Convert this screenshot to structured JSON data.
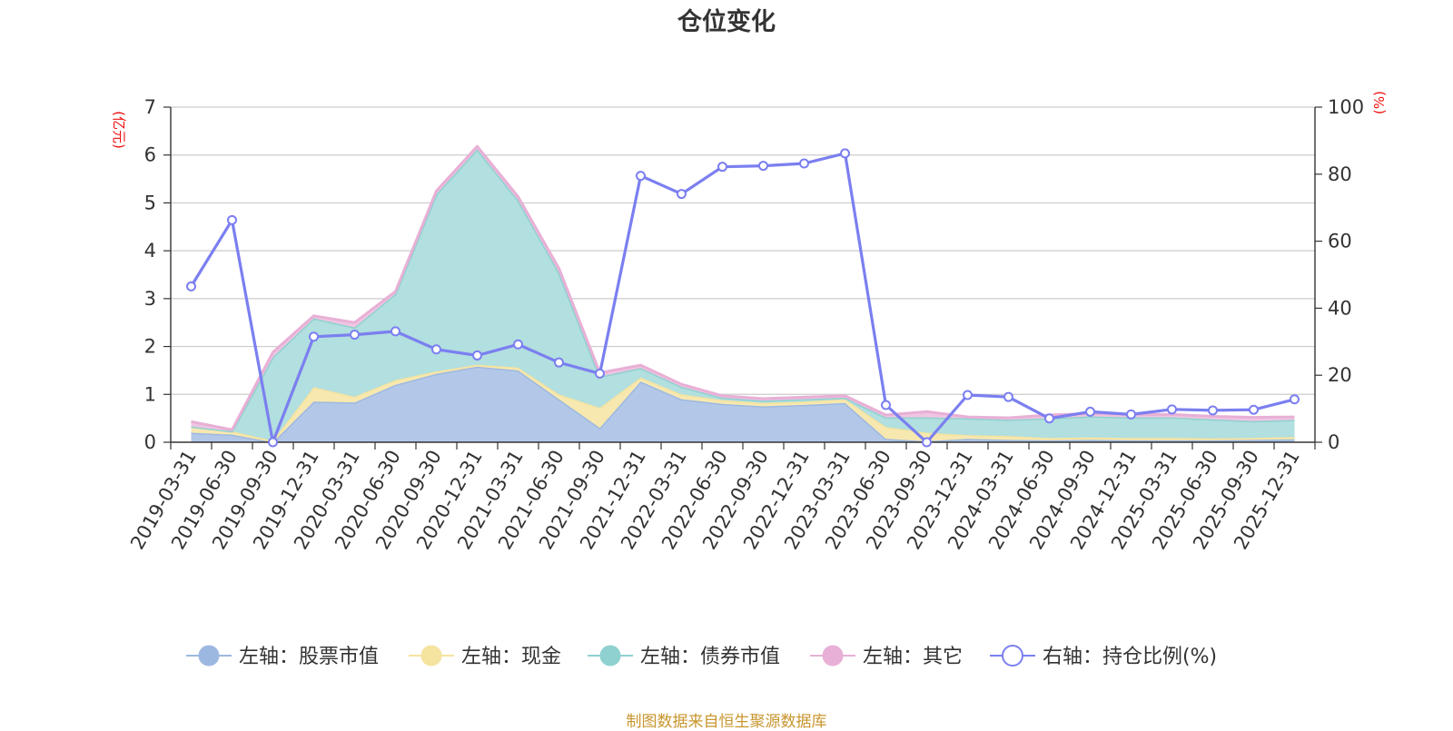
{
  "chart_data": {
    "type": "area",
    "title": "仓位变化",
    "source_note": "制图数据来自恒生聚源数据库",
    "left_axis": {
      "unit_label": "(亿元)",
      "range": [
        0,
        7
      ],
      "ticks": [
        "0",
        "1",
        "2",
        "3",
        "4",
        "5",
        "6",
        "7"
      ]
    },
    "right_axis": {
      "unit_label": "(%)",
      "range": [
        0,
        100
      ],
      "ticks": [
        "0",
        "20",
        "40",
        "60",
        "80",
        "100"
      ]
    },
    "grid": true,
    "legend_position": "bottom",
    "categories": [
      "2019-03-31",
      "2019-06-30",
      "2019-09-30",
      "2019-12-31",
      "2020-03-31",
      "2020-06-30",
      "2020-09-30",
      "2020-12-31",
      "2021-03-31",
      "2021-06-30",
      "2021-09-30",
      "2021-12-31",
      "2022-03-31",
      "2022-06-30",
      "2022-09-30",
      "2022-12-31",
      "2023-03-31",
      "2023-06-30",
      "2023-09-30",
      "2023-12-31",
      "2024-03-31",
      "2024-06-30",
      "2024-09-30",
      "2024-12-31",
      "2025-03-31",
      "2025-06-30",
      "2025-09-30",
      "2025-12-31"
    ],
    "series": [
      {
        "name": "左轴：股票市值",
        "axis": "left",
        "stack": true,
        "color": "#9db8e0",
        "fill": "#b3c8e8",
        "values": [
          0.2,
          0.16,
          0,
          0.85,
          0.83,
          1.2,
          1.43,
          1.58,
          1.5,
          0.9,
          0.3,
          1.27,
          0.9,
          0.8,
          0.75,
          0.78,
          0.82,
          0.07,
          0.02,
          0.07,
          0.05,
          0.04,
          0.05,
          0.04,
          0.04,
          0.04,
          0.05,
          0.06
        ]
      },
      {
        "name": "左轴：现金",
        "axis": "left",
        "stack": true,
        "color": "#f5e3a0",
        "fill": "#f7e8b0",
        "values": [
          0.13,
          0.07,
          0.03,
          0.3,
          0.12,
          0.1,
          0.05,
          0.04,
          0.06,
          0.1,
          0.42,
          0.08,
          0.1,
          0.08,
          0.07,
          0.07,
          0.08,
          0.25,
          0.18,
          0.08,
          0.08,
          0.05,
          0.05,
          0.05,
          0.05,
          0.04,
          0.04,
          0.05
        ]
      },
      {
        "name": "左轴：债券市值",
        "axis": "left",
        "stack": true,
        "color": "#8fd1d0",
        "fill": "#b2dfdf",
        "values": [
          0,
          0,
          1.75,
          1.44,
          1.45,
          1.8,
          3.7,
          4.5,
          3.5,
          2.55,
          0.65,
          0.2,
          0.16,
          0.05,
          0.05,
          0.05,
          0.03,
          0.2,
          0.32,
          0.35,
          0.34,
          0.41,
          0.44,
          0.43,
          0.43,
          0.4,
          0.35,
          0.36
        ]
      },
      {
        "name": "左轴：其它",
        "axis": "left",
        "stack": true,
        "color": "#e8b0d6",
        "fill": "#efc5e2",
        "values": [
          0.1,
          0.03,
          0.1,
          0.05,
          0.1,
          0.05,
          0.07,
          0.06,
          0.07,
          0.08,
          0.08,
          0.06,
          0.05,
          0.04,
          0.04,
          0.04,
          0.04,
          0.05,
          0.12,
          0.03,
          0.04,
          0.07,
          0.06,
          0.06,
          0.06,
          0.06,
          0.08,
          0.06
        ]
      },
      {
        "name": "右轴：持仓比例(%)",
        "axis": "right",
        "stack": false,
        "color": "#7b7ff0",
        "values": [
          46.5,
          66.3,
          0,
          31.5,
          32.1,
          33.1,
          27.7,
          25.9,
          29.2,
          23.8,
          20.5,
          79.5,
          74.1,
          82.2,
          82.5,
          83.2,
          86.2,
          11.1,
          0,
          14.1,
          13.5,
          7.1,
          9.1,
          8.3,
          9.8,
          9.5,
          9.7,
          12.8
        ]
      }
    ]
  }
}
